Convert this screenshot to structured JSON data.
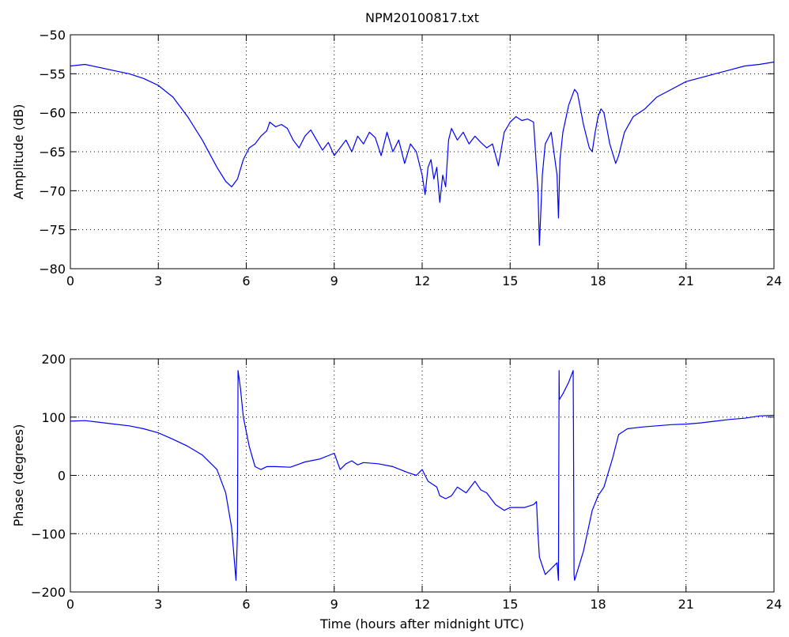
{
  "title": "NPM20100817.txt",
  "chart_data": [
    {
      "type": "line",
      "ylabel": "Amplitude (dB)",
      "xlabel": "",
      "xlim": [
        0,
        24
      ],
      "ylim": [
        -80,
        -50
      ],
      "xticks": [
        0,
        3,
        6,
        9,
        12,
        15,
        18,
        21,
        24
      ],
      "yticks": [
        -80,
        -75,
        -70,
        -65,
        -60,
        -55,
        -50
      ],
      "xtick_labels": [
        "0",
        "3",
        "6",
        "9",
        "12",
        "15",
        "18",
        "21",
        "24"
      ],
      "ytick_labels": [
        "−80",
        "−75",
        "−70",
        "−65",
        "−60",
        "−55",
        "−50"
      ],
      "grid": true,
      "series": [
        {
          "color": "#0000ff",
          "x": [
            0,
            0.5,
            1,
            1.5,
            2,
            2.5,
            3,
            3.5,
            4,
            4.5,
            5,
            5.3,
            5.5,
            5.7,
            5.9,
            6.1,
            6.3,
            6.5,
            6.7,
            6.8,
            7,
            7.2,
            7.4,
            7.6,
            7.8,
            8,
            8.2,
            8.4,
            8.6,
            8.8,
            9,
            9.2,
            9.4,
            9.6,
            9.8,
            10,
            10.2,
            10.4,
            10.6,
            10.8,
            11,
            11.2,
            11.4,
            11.6,
            11.8,
            12,
            12.1,
            12.2,
            12.3,
            12.4,
            12.5,
            12.6,
            12.7,
            12.8,
            12.9,
            13,
            13.2,
            13.4,
            13.6,
            13.8,
            14,
            14.2,
            14.4,
            14.6,
            14.8,
            15,
            15.2,
            15.4,
            15.6,
            15.8,
            15.95,
            16,
            16.1,
            16.2,
            16.4,
            16.6,
            16.65,
            16.7,
            16.8,
            17,
            17.2,
            17.3,
            17.5,
            17.7,
            17.8,
            17.9,
            18,
            18.1,
            18.2,
            18.4,
            18.6,
            18.7,
            18.9,
            19.2,
            19.6,
            20,
            20.5,
            21,
            21.5,
            22,
            22.5,
            23,
            23.5,
            24
          ],
          "y": [
            -54,
            -53.8,
            -54.2,
            -54.6,
            -55,
            -55.6,
            -56.5,
            -58,
            -60.5,
            -63.5,
            -67,
            -68.8,
            -69.5,
            -68.5,
            -66,
            -64.5,
            -64,
            -63,
            -62.3,
            -61.2,
            -61.8,
            -61.5,
            -62,
            -63.5,
            -64.5,
            -63,
            -62.2,
            -63.5,
            -64.8,
            -63.8,
            -65.5,
            -64.5,
            -63.5,
            -65,
            -63,
            -64,
            -62.5,
            -63.2,
            -65.5,
            -62.5,
            -65,
            -63.5,
            -66.5,
            -64,
            -65,
            -68,
            -70.5,
            -67,
            -66,
            -68.5,
            -67,
            -71.5,
            -68,
            -69.5,
            -63.5,
            -62,
            -63.5,
            -62.5,
            -64,
            -63,
            -63.8,
            -64.5,
            -64,
            -66.8,
            -62.5,
            -61.2,
            -60.5,
            -61,
            -60.8,
            -61.2,
            -70,
            -77,
            -68,
            -64,
            -62.5,
            -68,
            -73.5,
            -66,
            -62.5,
            -59,
            -57,
            -57.5,
            -61.5,
            -64.5,
            -65,
            -62.5,
            -60.5,
            -59.5,
            -60,
            -64,
            -66.5,
            -65.5,
            -62.5,
            -60.5,
            -59.5,
            -58,
            -57,
            -56,
            -55.5,
            -55,
            -54.5,
            -54,
            -53.8,
            -53.5
          ]
        }
      ]
    },
    {
      "type": "line",
      "ylabel": "Phase (degrees)",
      "xlabel": "Time (hours after midnight UTC)",
      "xlim": [
        0,
        24
      ],
      "ylim": [
        -200,
        200
      ],
      "xticks": [
        0,
        3,
        6,
        9,
        12,
        15,
        18,
        21,
        24
      ],
      "yticks": [
        -200,
        -100,
        0,
        100,
        200
      ],
      "xtick_labels": [
        "0",
        "3",
        "6",
        "9",
        "12",
        "15",
        "18",
        "21",
        "24"
      ],
      "ytick_labels": [
        "−200",
        "−100",
        "0",
        "100",
        "200"
      ],
      "grid": true,
      "series": [
        {
          "color": "#0000ff",
          "x": [
            0,
            0.5,
            1,
            1.5,
            2,
            2.5,
            3,
            3.5,
            4,
            4.5,
            5,
            5.3,
            5.5,
            5.65,
            5.7,
            5.72,
            5.8,
            5.9,
            6.1,
            6.3,
            6.5,
            6.7,
            7,
            7.5,
            8,
            8.5,
            9,
            9.2,
            9.4,
            9.6,
            9.8,
            10,
            10.5,
            11,
            11.5,
            11.8,
            12,
            12.2,
            12.5,
            12.6,
            12.8,
            13,
            13.2,
            13.5,
            13.8,
            14,
            14.2,
            14.5,
            14.8,
            15,
            15.5,
            15.8,
            15.9,
            15.95,
            16,
            16.2,
            16.4,
            16.6,
            16.65,
            16.67,
            16.68,
            16.8,
            17,
            17.15,
            17.16,
            17.18,
            17.2,
            17.5,
            17.8,
            18,
            18.2,
            18.5,
            18.7,
            19,
            19.5,
            20,
            20.5,
            21,
            21.5,
            22,
            22.5,
            23,
            23.5,
            24
          ],
          "y": [
            93,
            94,
            91,
            88,
            85,
            80,
            73,
            62,
            50,
            35,
            10,
            -30,
            -90,
            -180,
            -100,
            180,
            150,
            100,
            50,
            15,
            10,
            15,
            15,
            14,
            23,
            28,
            38,
            10,
            20,
            25,
            18,
            22,
            20,
            15,
            5,
            0,
            10,
            -10,
            -20,
            -35,
            -40,
            -35,
            -20,
            -30,
            -10,
            -25,
            -30,
            -50,
            -60,
            -55,
            -55,
            -50,
            -45,
            -100,
            -140,
            -170,
            -160,
            -150,
            -180,
            180,
            130,
            140,
            160,
            180,
            80,
            -170,
            -180,
            -130,
            -60,
            -35,
            -20,
            30,
            70,
            80,
            83,
            85,
            87,
            88,
            90,
            93,
            96,
            98,
            102,
            103
          ]
        }
      ]
    }
  ]
}
